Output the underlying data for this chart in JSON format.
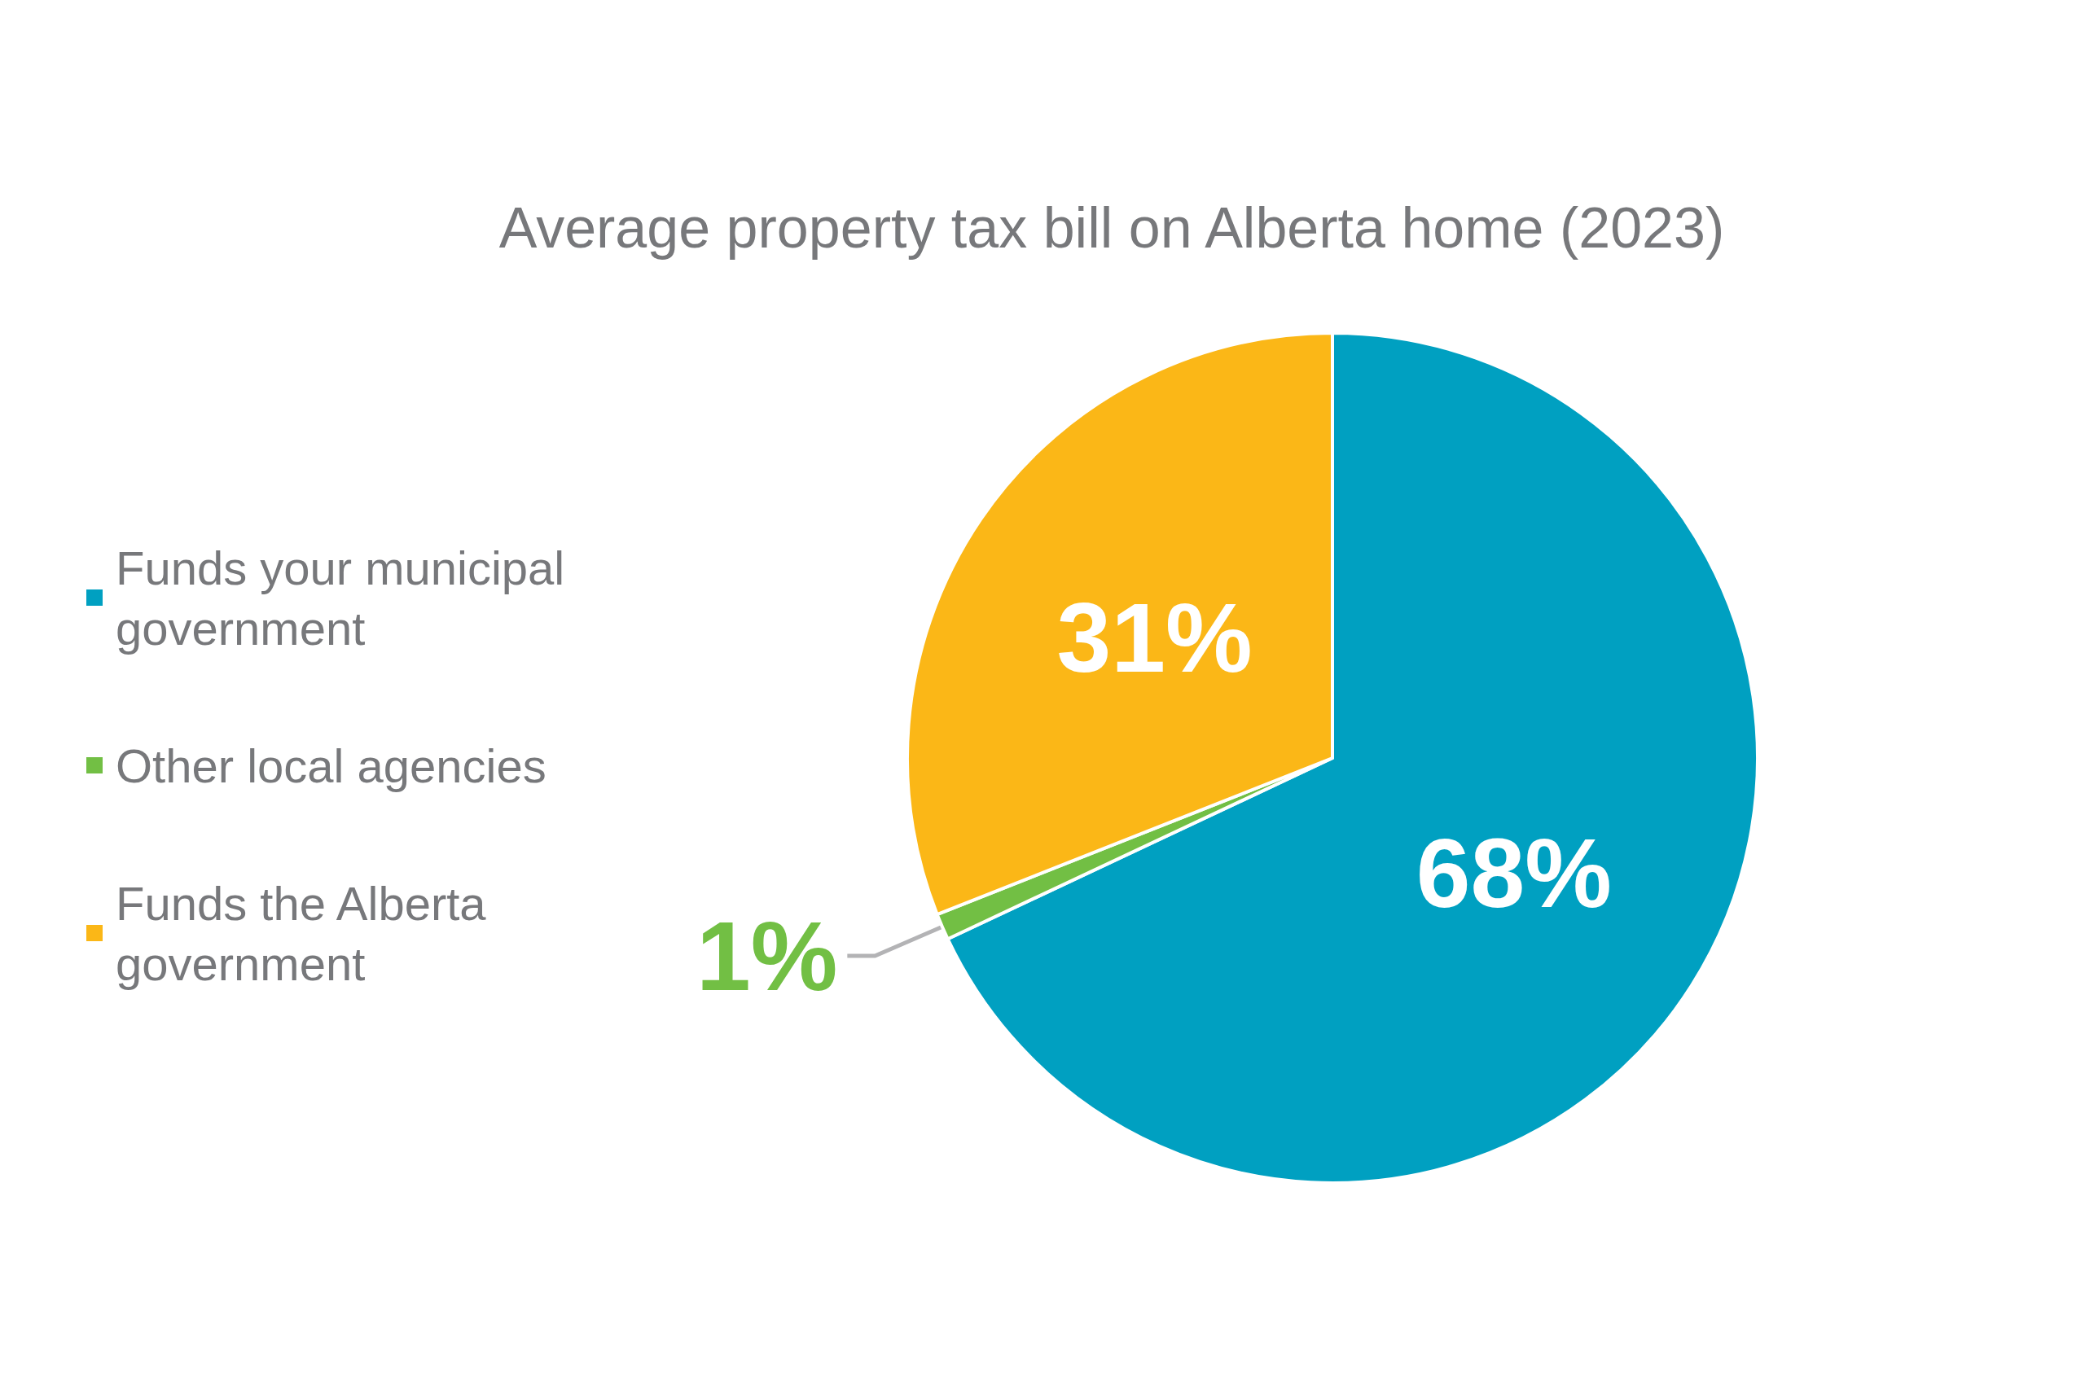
{
  "chart_data": {
    "type": "pie",
    "title": "Average property tax bill on Alberta home (2023)",
    "categories": [
      "Funds your municipal government",
      "Other local agencies",
      "Funds the Alberta government"
    ],
    "values": [
      68,
      1,
      31
    ],
    "colors": [
      "#00a0c1",
      "#72bf44",
      "#fbb717"
    ],
    "value_labels": [
      "68%",
      "1%",
      "31%"
    ],
    "legend": "left"
  }
}
